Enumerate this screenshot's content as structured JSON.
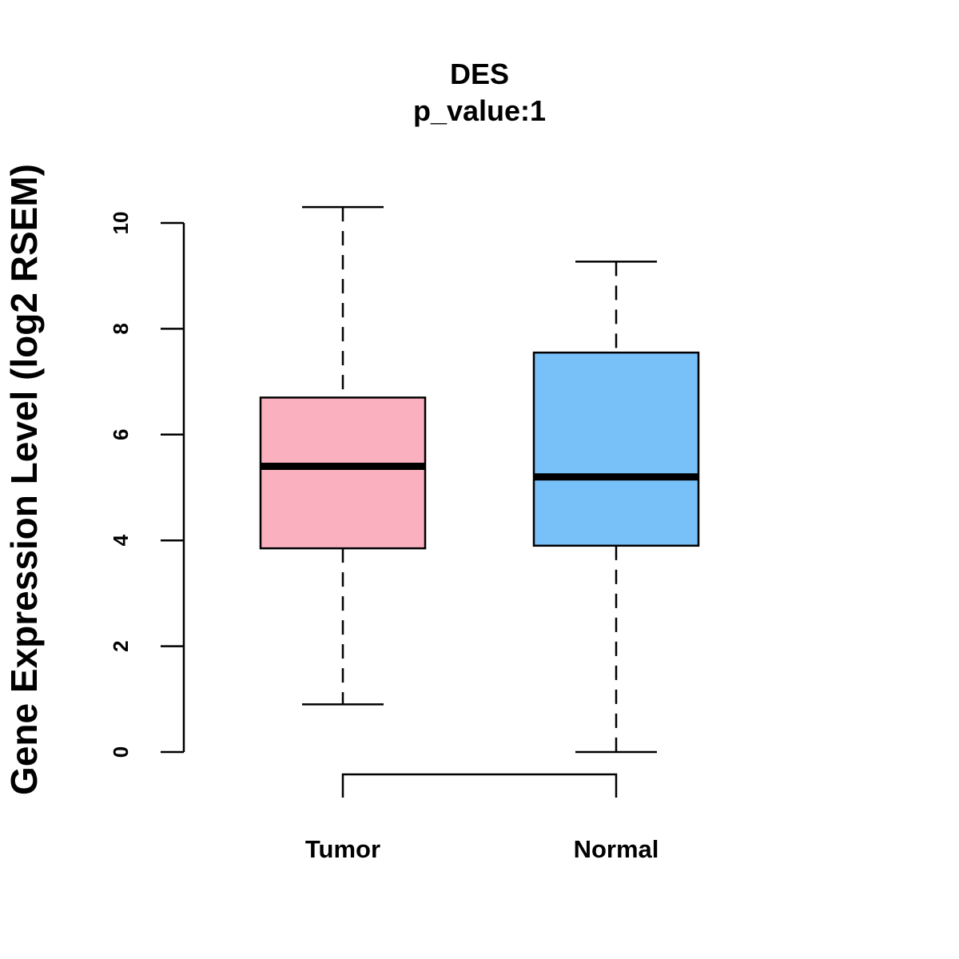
{
  "chart_data": {
    "type": "boxplot",
    "title": "DES",
    "subtitle": "p_value:1",
    "xlabel": "",
    "ylabel": "Gene Expression Level (log2 RSEM)",
    "ylim": [
      0,
      10
    ],
    "yticks": [
      0,
      2,
      4,
      6,
      8,
      10
    ],
    "grid": false,
    "categories": [
      "Tumor",
      "Normal"
    ],
    "boxes": [
      {
        "name": "Tumor",
        "whisker_low": 0.9,
        "q1": 3.85,
        "median": 5.4,
        "q3": 6.7,
        "whisker_high": 10.3,
        "fill": "#FBB0C0"
      },
      {
        "name": "Normal",
        "whisker_low": 0.0,
        "q1": 3.9,
        "median": 5.2,
        "q3": 7.55,
        "whisker_high": 9.27,
        "fill": "#78C1F8"
      }
    ],
    "comparison_bracket": {
      "from": "Tumor",
      "to": "Normal",
      "label": ""
    }
  }
}
